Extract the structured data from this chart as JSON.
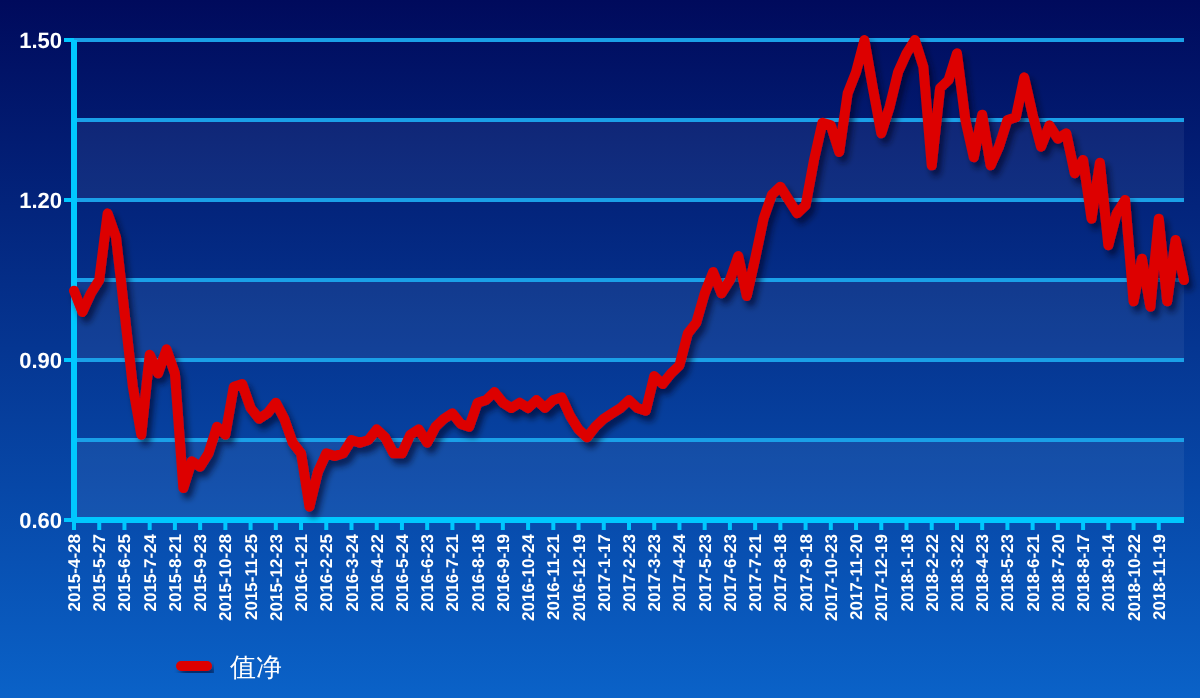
{
  "chart_data": {
    "type": "line",
    "categories": [
      "2015-4-28",
      null,
      null,
      "2015-5-27",
      null,
      null,
      "2015-6-25",
      null,
      null,
      "2015-7-24",
      null,
      null,
      "2015-8-21",
      null,
      null,
      "2015-9-23",
      null,
      null,
      "2015-10-28",
      null,
      null,
      "2015-11-25",
      null,
      null,
      "2015-12-23",
      null,
      null,
      "2016-1-21",
      null,
      null,
      "2016-2-25",
      null,
      null,
      "2016-3-24",
      null,
      null,
      "2016-4-22",
      null,
      null,
      "2016-5-24",
      null,
      null,
      "2016-6-23",
      null,
      null,
      "2016-7-21",
      null,
      null,
      "2016-8-18",
      null,
      null,
      "2016-9-19",
      null,
      null,
      "2016-10-24",
      null,
      null,
      "2016-11-21",
      null,
      null,
      "2016-12-19",
      null,
      null,
      "2017-1-17",
      null,
      null,
      "2017-2-23",
      null,
      null,
      "2017-3-23",
      null,
      null,
      "2017-4-24",
      null,
      null,
      "2017-5-23",
      null,
      null,
      "2017-6-23",
      null,
      null,
      "2017-7-21",
      null,
      null,
      "2017-8-18",
      null,
      null,
      "2017-9-18",
      null,
      null,
      "2017-10-23",
      null,
      null,
      "2017-11-20",
      null,
      null,
      "2017-12-19",
      null,
      null,
      "2018-1-18",
      null,
      null,
      "2018-2-22",
      null,
      null,
      "2018-3-22",
      null,
      null,
      "2018-4-23",
      null,
      null,
      "2018-5-23",
      null,
      null,
      "2018-6-21",
      null,
      null,
      "2018-7-20",
      null,
      null,
      "2018-8-17",
      null,
      null,
      "2018-9-14",
      null,
      null,
      "2018-10-22",
      null,
      null,
      "2018-11-19",
      null,
      null,
      null
    ],
    "series": [
      {
        "name": "值净",
        "color": "#dd0000",
        "values": [
          1.03,
          0.99,
          1.025,
          1.05,
          1.175,
          1.13,
          0.99,
          0.85,
          0.76,
          0.91,
          0.875,
          0.92,
          0.875,
          0.66,
          0.71,
          0.7,
          0.725,
          0.775,
          0.76,
          0.85,
          0.855,
          0.81,
          0.79,
          0.8,
          0.82,
          0.79,
          0.745,
          0.725,
          0.625,
          0.69,
          0.725,
          0.72,
          0.725,
          0.75,
          0.745,
          0.75,
          0.77,
          0.755,
          0.725,
          0.725,
          0.76,
          0.77,
          0.745,
          0.775,
          0.79,
          0.8,
          0.78,
          0.775,
          0.82,
          0.825,
          0.84,
          0.82,
          0.81,
          0.82,
          0.81,
          0.825,
          0.81,
          0.825,
          0.83,
          0.795,
          0.77,
          0.755,
          0.775,
          0.79,
          0.8,
          0.81,
          0.825,
          0.81,
          0.805,
          0.87,
          0.855,
          0.875,
          0.89,
          0.95,
          0.97,
          1.025,
          1.065,
          1.025,
          1.05,
          1.095,
          1.02,
          1.09,
          1.165,
          1.21,
          1.225,
          1.2,
          1.175,
          1.19,
          1.275,
          1.345,
          1.34,
          1.29,
          1.4,
          1.44,
          1.5,
          1.41,
          1.325,
          1.375,
          1.44,
          1.475,
          1.5,
          1.45,
          1.265,
          1.41,
          1.425,
          1.475,
          1.35,
          1.28,
          1.36,
          1.265,
          1.3,
          1.35,
          1.355,
          1.43,
          1.36,
          1.3,
          1.34,
          1.315,
          1.325,
          1.25,
          1.275,
          1.165,
          1.27,
          1.115,
          1.175,
          1.2,
          1.01,
          1.09,
          1.0,
          1.165,
          1.01,
          1.125,
          1.05
        ]
      }
    ],
    "ylim": [
      0.6,
      1.5
    ],
    "yticks": [
      {
        "value": 0.6,
        "label": "0.60"
      },
      {
        "value": 0.75,
        "label": null
      },
      {
        "value": 0.9,
        "label": "0.90"
      },
      {
        "value": 1.05,
        "label": null
      },
      {
        "value": 1.2,
        "label": "1.20"
      },
      {
        "value": 1.35,
        "label": null
      },
      {
        "value": 1.5,
        "label": "1.50"
      }
    ],
    "grid": "y",
    "legend": "bottom left"
  }
}
